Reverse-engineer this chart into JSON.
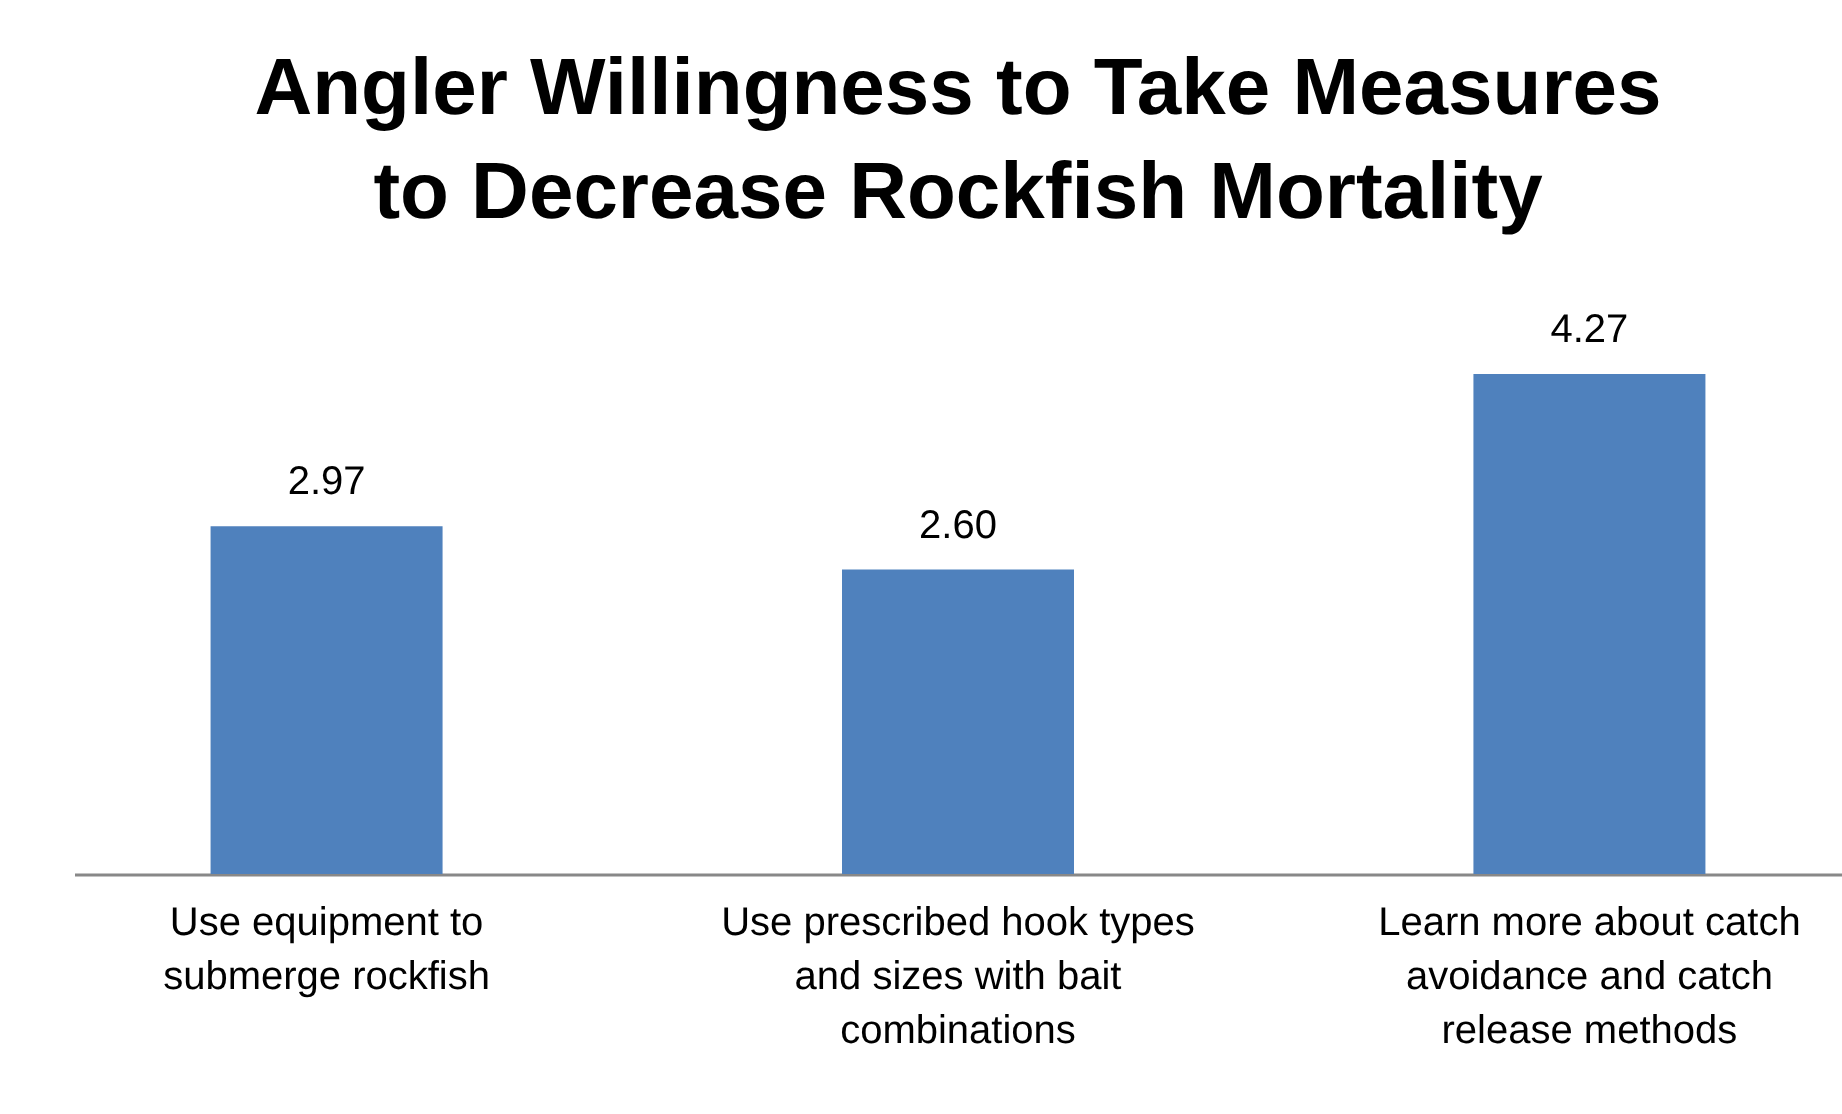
{
  "chart_data": {
    "type": "bar",
    "title": [
      "Angler Willingness to Take Measures",
      "to Decrease Rockfish Mortality"
    ],
    "categories": [
      "Use equipment to\nsubmerge rockfish",
      "Use prescribed hook types\nand sizes with bait\ncombinations",
      "Learn more about catch\navoidance and catch\nrelease methods"
    ],
    "values": [
      2.97,
      2.6,
      4.27
    ],
    "value_labels": [
      "2.97",
      "2.60",
      "4.27"
    ],
    "color": "#4f81bd",
    "data_labels": true
  }
}
